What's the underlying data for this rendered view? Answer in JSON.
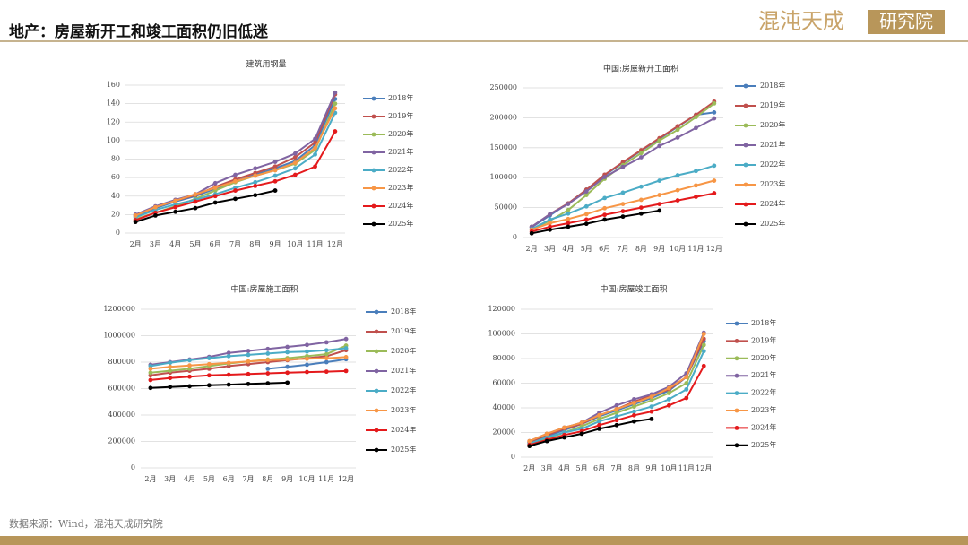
{
  "header": {
    "title": "地产：房屋新开工和竣工面积仍旧低迷",
    "logo_name": "混沌天成",
    "logo_unit": "研究院"
  },
  "footer": {
    "source": "数据来源：Wind，混沌天成研究院"
  },
  "chart_data": [
    {
      "type": "line",
      "title": "建筑用钢量",
      "categories": [
        "2月",
        "3月",
        "4月",
        "5月",
        "6月",
        "7月",
        "8月",
        "9月",
        "10月",
        "11月",
        "12月"
      ],
      "ylim": [
        0,
        160
      ],
      "yticks": [
        0,
        20,
        40,
        60,
        80,
        100,
        120,
        140,
        160
      ],
      "grid": true,
      "series": [
        {
          "name": "2018年",
          "color": "#4a7ebb",
          "values": [
            18,
            27,
            34,
            40,
            48,
            56,
            63,
            70,
            78,
            95,
            145
          ]
        },
        {
          "name": "2019年",
          "color": "#c0504d",
          "values": [
            19,
            28,
            35,
            41,
            50,
            58,
            65,
            72,
            82,
            98,
            150
          ]
        },
        {
          "name": "2020年",
          "color": "#9bbb59",
          "values": [
            15,
            22,
            29,
            37,
            46,
            55,
            62,
            68,
            75,
            90,
            140
          ]
        },
        {
          "name": "2021年",
          "color": "#8064a2",
          "values": [
            20,
            29,
            36,
            42,
            54,
            63,
            70,
            77,
            86,
            102,
            152
          ]
        },
        {
          "name": "2022年",
          "color": "#4bacc6",
          "values": [
            17,
            25,
            31,
            36,
            42,
            49,
            55,
            62,
            70,
            85,
            130
          ]
        },
        {
          "name": "2023年",
          "color": "#f79646",
          "values": [
            19,
            28,
            35,
            42,
            49,
            56,
            62,
            68,
            76,
            92,
            135
          ]
        },
        {
          "name": "2024年",
          "color": "#e41a1c",
          "values": [
            14,
            22,
            28,
            34,
            40,
            46,
            51,
            56,
            63,
            72,
            110
          ]
        },
        {
          "name": "2025年",
          "color": "#000000",
          "values": [
            12,
            19,
            23,
            27,
            33,
            37,
            41,
            46,
            null,
            null,
            null
          ]
        }
      ]
    },
    {
      "type": "line",
      "title": "中国:房屋新开工面积",
      "categories": [
        "2月",
        "3月",
        "4月",
        "5月",
        "6月",
        "7月",
        "8月",
        "9月",
        "10月",
        "11月",
        "12月"
      ],
      "ylim": [
        0,
        250000
      ],
      "yticks": [
        0,
        50000,
        100000,
        150000,
        200000,
        250000
      ],
      "grid": true,
      "series": [
        {
          "name": "2018年",
          "color": "#4a7ebb",
          "values": [
            17000,
            37000,
            57000,
            80000,
            104000,
            125000,
            145000,
            165000,
            185000,
            205000,
            209000
          ]
        },
        {
          "name": "2019年",
          "color": "#c0504d",
          "values": [
            18000,
            39000,
            57000,
            80000,
            105000,
            126000,
            146000,
            166000,
            186000,
            205000,
            227000
          ]
        },
        {
          "name": "2020年",
          "color": "#9bbb59",
          "values": [
            14000,
            28000,
            46000,
            71000,
            98000,
            121000,
            141000,
            162000,
            180000,
            201000,
            224000
          ]
        },
        {
          "name": "2021年",
          "color": "#8064a2",
          "values": [
            18000,
            39000,
            56000,
            77000,
            101000,
            118000,
            134000,
            153000,
            167000,
            183000,
            199000
          ]
        },
        {
          "name": "2022年",
          "color": "#4bacc6",
          "values": [
            14000,
            30000,
            40000,
            52000,
            66000,
            75000,
            85000,
            95000,
            104000,
            111000,
            120000
          ]
        },
        {
          "name": "2023年",
          "color": "#f79646",
          "values": [
            13000,
            24000,
            31000,
            39000,
            49000,
            56000,
            63000,
            71000,
            79000,
            87000,
            95000
          ]
        },
        {
          "name": "2024年",
          "color": "#e41a1c",
          "values": [
            10000,
            18000,
            24000,
            30000,
            38000,
            44000,
            50000,
            56000,
            62000,
            68000,
            74000
          ]
        },
        {
          "name": "2025年",
          "color": "#000000",
          "values": [
            7000,
            13000,
            18000,
            23000,
            30000,
            35000,
            40000,
            45000,
            null,
            null,
            null
          ]
        }
      ]
    },
    {
      "type": "line",
      "title": "中国:房屋施工面积",
      "categories": [
        "2月",
        "3月",
        "4月",
        "5月",
        "6月",
        "7月",
        "8月",
        "9月",
        "10月",
        "11月",
        "12月"
      ],
      "ylim": [
        0,
        1200000
      ],
      "yticks": [
        0,
        200000,
        400000,
        600000,
        800000,
        1000000,
        1200000
      ],
      "grid": true,
      "series": [
        {
          "name": "2018年",
          "color": "#4a7ebb",
          "values": [
            null,
            null,
            null,
            null,
            null,
            null,
            750000,
            765000,
            780000,
            800000,
            822000
          ]
        },
        {
          "name": "2019年",
          "color": "#c0504d",
          "values": [
            700000,
            720000,
            735000,
            750000,
            770000,
            785000,
            800000,
            815000,
            830000,
            845000,
            890000
          ]
        },
        {
          "name": "2020年",
          "color": "#9bbb59",
          "values": [
            720000,
            735000,
            750000,
            770000,
            790000,
            805000,
            820000,
            830000,
            845000,
            860000,
            925000
          ]
        },
        {
          "name": "2021年",
          "color": "#8064a2",
          "values": [
            780000,
            800000,
            820000,
            840000,
            870000,
            885000,
            900000,
            915000,
            930000,
            950000,
            975000
          ]
        },
        {
          "name": "2022年",
          "color": "#4bacc6",
          "values": [
            770000,
            795000,
            815000,
            830000,
            845000,
            855000,
            865000,
            875000,
            880000,
            890000,
            905000
          ]
        },
        {
          "name": "2023年",
          "color": "#f79646",
          "values": [
            750000,
            765000,
            775000,
            785000,
            795000,
            805000,
            815000,
            820000,
            825000,
            830000,
            838000
          ]
        },
        {
          "name": "2024年",
          "color": "#e41a1c",
          "values": [
            665000,
            680000,
            690000,
            700000,
            705000,
            710000,
            715000,
            720000,
            725000,
            728000,
            733000
          ]
        },
        {
          "name": "2025年",
          "color": "#000000",
          "values": [
            605000,
            612000,
            618000,
            625000,
            630000,
            635000,
            640000,
            645000,
            null,
            null,
            null
          ]
        }
      ]
    },
    {
      "type": "line",
      "title": "中国:房屋竣工面积",
      "categories": [
        "2月",
        "3月",
        "4月",
        "5月",
        "6月",
        "7月",
        "8月",
        "9月",
        "10月",
        "11月",
        "12月"
      ],
      "ylim": [
        0,
        120000
      ],
      "yticks": [
        0,
        20000,
        40000,
        60000,
        80000,
        100000,
        120000
      ],
      "grid": true,
      "series": [
        {
          "name": "2018年",
          "color": "#4a7ebb",
          "values": [
            12000,
            17000,
            22000,
            27000,
            33000,
            38000,
            43000,
            48000,
            54000,
            65000,
            94000
          ]
        },
        {
          "name": "2019年",
          "color": "#c0504d",
          "values": [
            12000,
            18000,
            23000,
            27000,
            34000,
            39000,
            45000,
            50000,
            55000,
            65000,
            96000
          ]
        },
        {
          "name": "2020年",
          "color": "#9bbb59",
          "values": [
            10000,
            15000,
            20000,
            25000,
            31000,
            36000,
            41000,
            46000,
            52000,
            60000,
            91000
          ]
        },
        {
          "name": "2021年",
          "color": "#8064a2",
          "values": [
            13000,
            19000,
            24000,
            28000,
            36000,
            42000,
            47000,
            51000,
            57000,
            68000,
            101000
          ]
        },
        {
          "name": "2022年",
          "color": "#4bacc6",
          "values": [
            11000,
            16000,
            20000,
            23000,
            29000,
            33000,
            37000,
            41000,
            47000,
            55000,
            86000
          ]
        },
        {
          "name": "2023年",
          "color": "#f79646",
          "values": [
            13000,
            19000,
            24000,
            28000,
            34000,
            39000,
            44000,
            49000,
            56000,
            65000,
            100000
          ]
        },
        {
          "name": "2024年",
          "color": "#e41a1c",
          "values": [
            10000,
            14000,
            18000,
            21000,
            26000,
            30000,
            34000,
            37000,
            42000,
            48000,
            74000
          ]
        },
        {
          "name": "2025年",
          "color": "#000000",
          "values": [
            9000,
            13000,
            16000,
            19000,
            23000,
            26000,
            29000,
            31000,
            null,
            null,
            null
          ]
        }
      ]
    }
  ]
}
